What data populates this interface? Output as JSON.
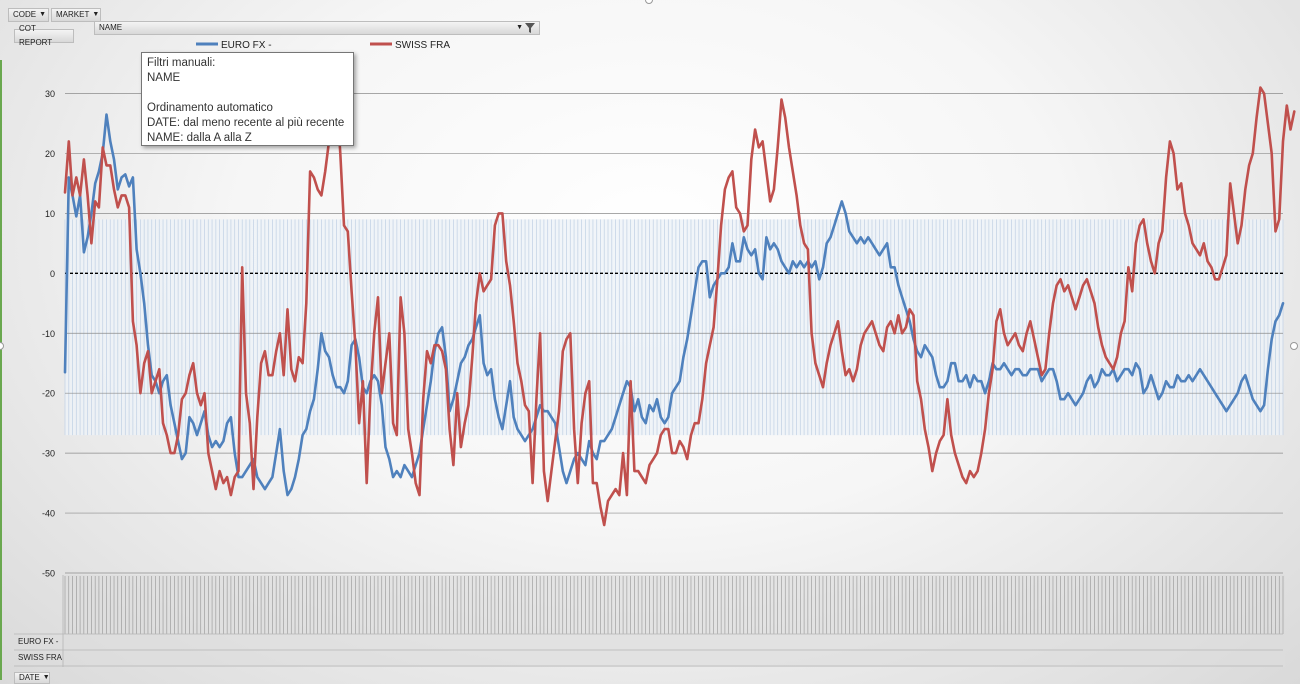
{
  "toolbar": {
    "code_label": "CODE",
    "market_label": "MARKET",
    "cot_report_label": "COT REPORT",
    "name_label": "NAME",
    "date_label": "DATE"
  },
  "tooltip": {
    "lines": [
      "Filtri manuali:",
      "NAME",
      "",
      "Ordinamento automatico",
      "DATE: dal meno recente al più recente",
      "NAME: dalla A alla Z"
    ]
  },
  "table_rows": [
    "EURO FX -",
    "SWISS FRA"
  ],
  "colors": {
    "euro": "#4f81bd",
    "swiss": "#c0504d",
    "grid": "#8c8c8c",
    "band": "#c5d4e6"
  },
  "chart_data": {
    "type": "line",
    "title": "",
    "xlabel": "",
    "ylabel": "",
    "ylim": [
      -50,
      30
    ],
    "yticks": [
      30,
      20,
      10,
      0,
      -10,
      -20,
      -30,
      -40,
      -50
    ],
    "grid": true,
    "legend": "top",
    "series": [
      {
        "name": "EURO FX -",
        "color": "#4f81bd",
        "values": [
          -16.5,
          16,
          13,
          9.5,
          13,
          3.5,
          6,
          10,
          15,
          17,
          20,
          26.5,
          22,
          19,
          14,
          16,
          16.5,
          14.5,
          16,
          4,
          0,
          -5,
          -12,
          -17,
          -18,
          -20,
          -18,
          -17,
          -22,
          -25,
          -28,
          -31,
          -30,
          -24,
          -25,
          -27,
          -25,
          -23,
          -27,
          -29,
          -28,
          -29,
          -28,
          -25,
          -24,
          -30,
          -34,
          -34,
          -33,
          -32,
          -31,
          -34,
          -35,
          -36,
          -35,
          -34,
          -30,
          -26,
          -33,
          -37,
          -36,
          -34,
          -31,
          -27,
          -26,
          -23,
          -21,
          -16,
          -10,
          -13,
          -14,
          -17,
          -19,
          -19,
          -20,
          -18,
          -12,
          -11,
          -14,
          -19,
          -20,
          -18,
          -17,
          -18,
          -22,
          -29,
          -31,
          -34,
          -33,
          -34,
          -32,
          -33,
          -34,
          -32,
          -30,
          -26,
          -22,
          -18,
          -13,
          -10,
          -9,
          -14,
          -23,
          -21,
          -18,
          -15,
          -14,
          -12,
          -11,
          -9,
          -7,
          -15,
          -17,
          -16,
          -21,
          -24,
          -26,
          -22,
          -18,
          -24,
          -26,
          -27,
          -28,
          -27,
          -26,
          -24,
          -22,
          -23,
          -23,
          -24,
          -25,
          -29,
          -33,
          -35,
          -33,
          -31,
          -30,
          -31,
          -32,
          -28,
          -30,
          -31,
          -28,
          -28,
          -27,
          -26,
          -24,
          -22,
          -20,
          -18,
          -19,
          -23,
          -21,
          -24,
          -25,
          -22,
          -23,
          -21,
          -24,
          -25,
          -24,
          -20,
          -19,
          -18,
          -14,
          -11,
          -7,
          -3,
          1,
          2,
          2,
          -4,
          -2,
          -1,
          0,
          0,
          1,
          5,
          2,
          2,
          6,
          4,
          3,
          4,
          0,
          -1,
          6,
          4,
          5,
          4,
          2,
          1,
          0,
          2,
          1,
          2,
          1,
          2,
          1,
          2,
          -1,
          1,
          5,
          6,
          8,
          10,
          12,
          10,
          7,
          6,
          5,
          6,
          5,
          6,
          5,
          4,
          3,
          4,
          5,
          1,
          1,
          -2,
          -4,
          -6,
          -8,
          -11,
          -13,
          -14,
          -12,
          -13,
          -14,
          -17,
          -19,
          -19,
          -18,
          -15,
          -15,
          -18,
          -18,
          -17,
          -19,
          -17,
          -18,
          -18,
          -20,
          -18,
          -15,
          -16,
          -16,
          -15,
          -16,
          -17,
          -16,
          -16,
          -17,
          -17,
          -16,
          -16,
          -16,
          -18,
          -17,
          -16,
          -16,
          -18,
          -21,
          -21,
          -20,
          -21,
          -22,
          -21,
          -20,
          -18,
          -17,
          -19,
          -18,
          -16,
          -17,
          -17,
          -16,
          -18,
          -17,
          -16,
          -16,
          -17,
          -15,
          -16,
          -20,
          -19,
          -17,
          -19,
          -21,
          -20,
          -18,
          -19,
          -19,
          -17,
          -18,
          -18,
          -17,
          -18,
          -17,
          -16,
          -17,
          -18,
          -19,
          -20,
          -21,
          -22,
          -23,
          -22,
          -21,
          -20,
          -18,
          -17,
          -19,
          -21,
          -22,
          -23,
          -22,
          -16,
          -11,
          -8,
          -7,
          -5
        ]
      },
      {
        "name": "SWISS FRA",
        "color": "#c0504d",
        "values": [
          13.5,
          22,
          13,
          16,
          13,
          19,
          13,
          5,
          12,
          11,
          21,
          18,
          18,
          14,
          11,
          13,
          13,
          11,
          -8,
          -12,
          -20,
          -15,
          -13,
          -20,
          -18,
          -16,
          -25,
          -27,
          -30,
          -30,
          -27,
          -21,
          -20,
          -17,
          -15,
          -20,
          -22,
          -20,
          -30,
          -33,
          -36,
          -33,
          -35,
          -34,
          -37,
          -34,
          -33,
          1,
          -20,
          -25,
          -36,
          -24,
          -15,
          -13,
          -17,
          -17,
          -13,
          -10,
          -17,
          -6,
          -16,
          -18,
          -14,
          -15,
          -5,
          17,
          16,
          14,
          13,
          17,
          22,
          26,
          30,
          20,
          8,
          7,
          -3,
          -12,
          -25,
          -18,
          -35,
          -20,
          -10,
          -4,
          -20,
          -15,
          -10,
          -25,
          -27,
          -4,
          -10,
          -26,
          -30,
          -35,
          -37,
          -21,
          -13,
          -15,
          -12,
          -12,
          -13,
          -16,
          -26,
          -32,
          -20,
          -29,
          -25,
          -22,
          -14,
          -5,
          0,
          -3,
          -2,
          -1,
          8,
          10,
          10,
          2,
          -2,
          -8,
          -15,
          -18,
          -22,
          -23,
          -35,
          -21,
          -10,
          -33,
          -38,
          -33,
          -28,
          -23,
          -13,
          -11,
          -10,
          -26,
          -35,
          -25,
          -20,
          -18,
          -35,
          -35,
          -39,
          -42,
          -38,
          -37,
          -36,
          -37,
          -30,
          -37,
          -18,
          -33,
          -33,
          -34,
          -35,
          -32,
          -31,
          -30,
          -27,
          -26,
          -26,
          -30,
          -30,
          -28,
          -29,
          -31,
          -27,
          -25,
          -25,
          -21,
          -15,
          -12,
          -9,
          -1,
          8,
          14,
          16,
          17,
          11,
          10,
          7,
          8,
          19,
          24,
          21,
          22,
          17,
          12,
          14,
          21,
          29,
          26,
          21,
          17,
          13,
          8,
          5,
          4,
          -10,
          -15,
          -17,
          -19,
          -15,
          -12,
          -10,
          -8,
          -13,
          -17,
          -16,
          -18,
          -16,
          -12,
          -10,
          -9,
          -8,
          -10,
          -12,
          -13,
          -9,
          -8,
          -10,
          -7,
          -10,
          -9,
          -6,
          -7,
          -18,
          -21,
          -26,
          -29,
          -33,
          -30,
          -28,
          -27,
          -21,
          -27,
          -30,
          -32,
          -34,
          -35,
          -33,
          -34,
          -33,
          -30,
          -26,
          -20,
          -16,
          -8,
          -6,
          -10,
          -12,
          -11,
          -10,
          -12,
          -13,
          -10,
          -8,
          -11,
          -14,
          -17,
          -16,
          -10,
          -5,
          -2,
          -1,
          -3,
          -2,
          -4,
          -6,
          -4,
          -2,
          -1,
          -3,
          -5,
          -9,
          -12,
          -14,
          -15,
          -16,
          -14,
          -10,
          -8,
          1,
          -3,
          5,
          8,
          9,
          5,
          2,
          0,
          5,
          7,
          16,
          22,
          20,
          14,
          15,
          10,
          8,
          5,
          4,
          3,
          5,
          2,
          1,
          -1,
          -1,
          1,
          3,
          15,
          10,
          5,
          8,
          14,
          18,
          20,
          26,
          31,
          30,
          25,
          20,
          7,
          9,
          22,
          28,
          24,
          27
        ]
      }
    ]
  }
}
